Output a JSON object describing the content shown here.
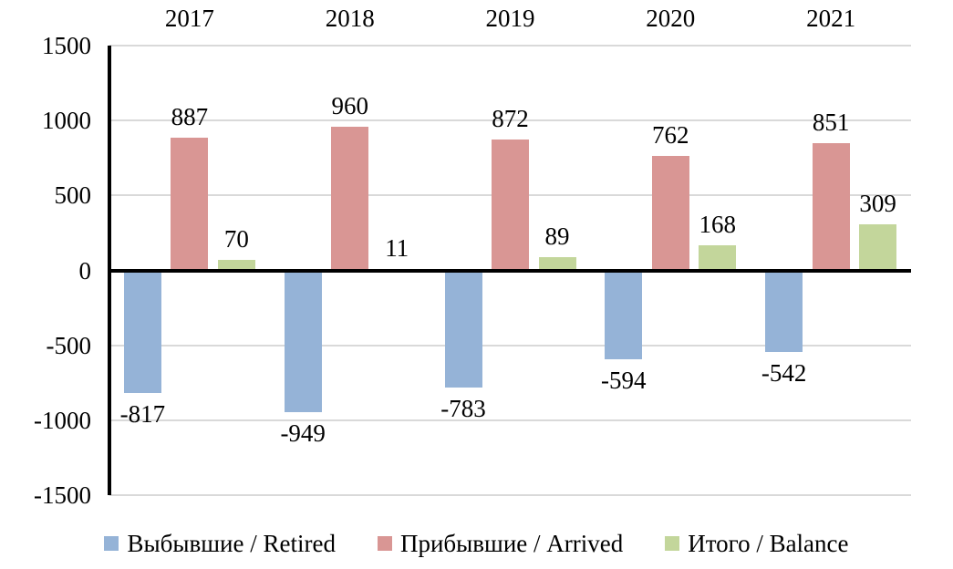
{
  "chart_data": {
    "type": "bar",
    "title": "",
    "xlabel": "",
    "ylabel": "",
    "categories": [
      "2017",
      "2018",
      "2019",
      "2020",
      "2021"
    ],
    "series": [
      {
        "name": "Выбывшие / Retired",
        "color": "#95B3D7",
        "values": [
          -817,
          -949,
          -783,
          -594,
          -542
        ]
      },
      {
        "name": "Прибывшие / Arrived",
        "color": "#D99694",
        "values": [
          887,
          960,
          872,
          762,
          851
        ]
      },
      {
        "name": "Итого / Balance",
        "color": "#C3D69B",
        "values": [
          70,
          11,
          89,
          168,
          309
        ]
      }
    ],
    "ylim": [
      -1500,
      1500
    ],
    "yticks": [
      1500,
      1000,
      500,
      0,
      -500,
      -1000,
      -1500
    ],
    "grid": true,
    "data_labels": true,
    "legend_position": "bottom",
    "category_labels_position": "top"
  },
  "colors": {
    "background": "#FFFFFF",
    "gridline": "#D9D9D9",
    "axis": "#000000",
    "text": "#000000"
  }
}
